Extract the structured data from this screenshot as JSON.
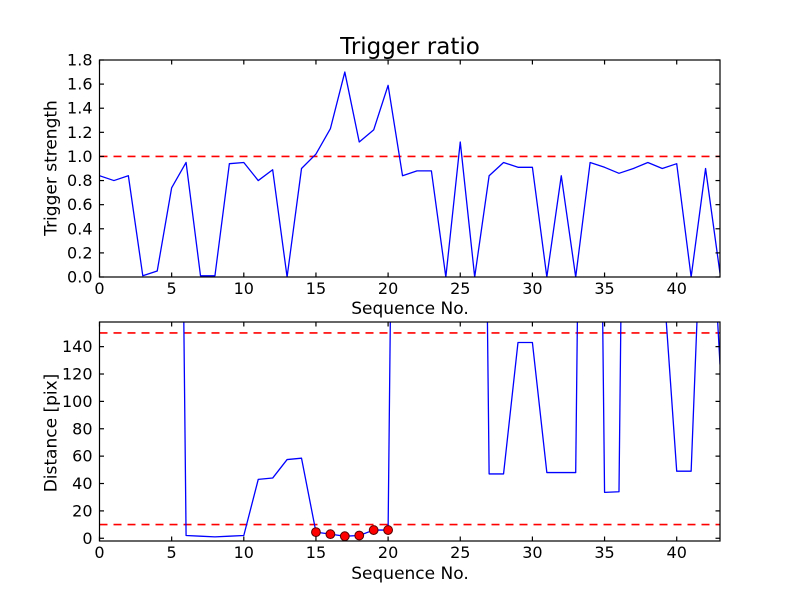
{
  "figure": {
    "background": "#ffffff",
    "spine_color": "#000000",
    "tick_color": "#000000"
  },
  "chart_data": [
    {
      "type": "line",
      "title": "Trigger ratio",
      "xlabel": "Sequence No.",
      "ylabel": "Trigger strength",
      "xlim": [
        0,
        43
      ],
      "ylim": [
        0,
        1.8
      ],
      "grid": false,
      "legend": null,
      "xtick_values": [
        0,
        5,
        10,
        15,
        20,
        25,
        30,
        35,
        40
      ],
      "xtick_labels": [
        "0",
        "5",
        "10",
        "15",
        "20",
        "25",
        "30",
        "35",
        "40"
      ],
      "ytick_values": [
        0,
        0.2,
        0.4,
        0.6,
        0.8,
        1.0,
        1.2,
        1.4,
        1.6,
        1.8
      ],
      "ytick_labels": [
        "0.0",
        "0.2",
        "0.4",
        "0.6",
        "0.8",
        "1.0",
        "1.2",
        "1.4",
        "1.6",
        "1.8"
      ],
      "threshold_lines": [
        {
          "name": "trigger-threshold-line",
          "y": 1.0,
          "color": "#ff0000",
          "style": "dashed"
        }
      ],
      "series": [
        {
          "name": "trigger-strength-line",
          "color": "#0000ff",
          "x": [
            0,
            1,
            2,
            3,
            4,
            5,
            6,
            7,
            8,
            9,
            10,
            11,
            12,
            13,
            14,
            15,
            16,
            17,
            18,
            19,
            20,
            21,
            22,
            23,
            24,
            25,
            26,
            27,
            28,
            29,
            30,
            31,
            32,
            33,
            34,
            35,
            36,
            37,
            38,
            39,
            40,
            41,
            42,
            43
          ],
          "y": [
            0.84,
            0.8,
            0.84,
            0.01,
            0.05,
            0.74,
            0.95,
            0.01,
            0.01,
            0.94,
            0.95,
            0.8,
            0.89,
            0.0,
            0.9,
            1.02,
            1.23,
            1.7,
            1.12,
            1.22,
            1.59,
            0.84,
            0.88,
            0.88,
            0.0,
            1.12,
            0.0,
            0.84,
            0.95,
            0.91,
            0.91,
            0.0,
            0.84,
            0.0,
            0.95,
            0.91,
            0.86,
            0.9,
            0.95,
            0.9,
            0.94,
            0.0,
            0.9,
            0.03
          ]
        }
      ],
      "markers": []
    },
    {
      "type": "line",
      "title": "",
      "xlabel": "Sequence No.",
      "ylabel": "Distance [pix]",
      "xlim": [
        0,
        43
      ],
      "ylim": [
        -2,
        158
      ],
      "grid": false,
      "legend": null,
      "xtick_values": [
        0,
        5,
        10,
        15,
        20,
        25,
        30,
        35,
        40
      ],
      "xtick_labels": [
        "0",
        "5",
        "10",
        "15",
        "20",
        "25",
        "30",
        "35",
        "40"
      ],
      "ytick_values": [
        0,
        20,
        40,
        60,
        80,
        100,
        120,
        140
      ],
      "ytick_labels": [
        "0",
        "20",
        "40",
        "60",
        "80",
        "100",
        "120",
        "140"
      ],
      "threshold_lines": [
        {
          "name": "distance-upper-threshold-line",
          "y": 150,
          "color": "#ff0000",
          "style": "dashed"
        },
        {
          "name": "distance-lower-threshold-line",
          "y": 10,
          "color": "#ff0000",
          "style": "dashed"
        }
      ],
      "series": [
        {
          "name": "distance-line",
          "color": "#0000ff",
          "x": [
            0,
            1,
            2,
            3,
            4,
            5,
            6,
            7,
            8,
            9,
            10,
            11,
            12,
            13,
            14,
            15,
            16,
            17,
            18,
            19,
            20,
            21,
            22,
            23,
            24,
            25,
            26,
            27,
            28,
            29,
            30,
            31,
            32,
            33,
            34,
            35,
            36,
            37,
            38,
            39,
            40,
            41,
            42,
            43
          ],
          "y": [
            1000,
            1000,
            1000,
            1000,
            1000,
            1000,
            2,
            1.5,
            1,
            1.5,
            2,
            43,
            44,
            57.5,
            58.5,
            4.5,
            3,
            1.5,
            2,
            6,
            6,
            1000,
            1000,
            1000,
            1000,
            1000,
            1000,
            47,
            47,
            143,
            143,
            48,
            48,
            48,
            1000,
            33.5,
            34,
            1000,
            1000,
            200,
            49,
            49,
            320,
            127
          ]
        }
      ],
      "markers": [
        {
          "name": "matched-distance-points",
          "color": "#ff0000",
          "edge_color": "#550000",
          "x": [
            15,
            16,
            17,
            18,
            19,
            20
          ],
          "y": [
            4.5,
            3,
            1.5,
            2,
            6,
            6
          ]
        }
      ]
    }
  ]
}
